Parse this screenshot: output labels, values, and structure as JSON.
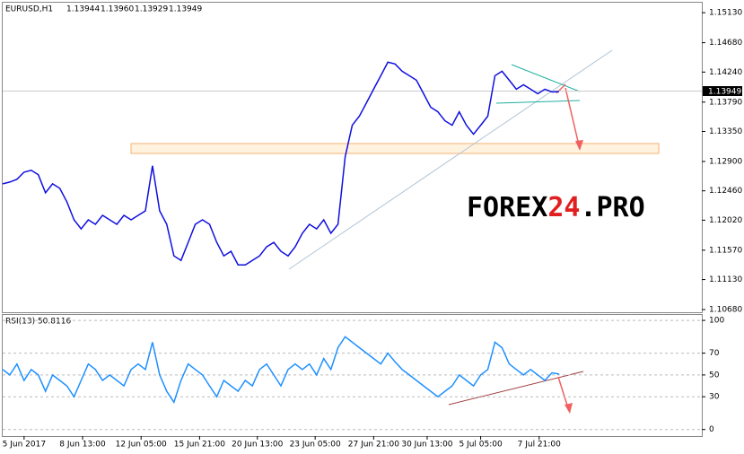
{
  "chart_data": [
    {
      "type": "line",
      "title": "EURUSD,H1",
      "quote": [
        "1.13944",
        "1.13960",
        "1.13929",
        "1.13949"
      ],
      "last_price_label": "1.13949",
      "watermark": [
        "FOREX",
        "24",
        ".PRO"
      ],
      "x": [
        0,
        1,
        2,
        3,
        4,
        5,
        6,
        7,
        8,
        9,
        10,
        11,
        12,
        13,
        14,
        15,
        16,
        17,
        18,
        19,
        20,
        21,
        22,
        23,
        24,
        25,
        26,
        27,
        28,
        29,
        30,
        31,
        32,
        33,
        34,
        35,
        36,
        37,
        38,
        39,
        40,
        41,
        42,
        43,
        44,
        45,
        46,
        47,
        48,
        49,
        50,
        51,
        52,
        53,
        54,
        55,
        56,
        57,
        58,
        59,
        60,
        61,
        62,
        63,
        64,
        65,
        66,
        67,
        68,
        69,
        70,
        71,
        72,
        73,
        74,
        75,
        76,
        77,
        78
      ],
      "values": [
        1.12565,
        1.12592,
        1.12633,
        1.1274,
        1.12768,
        1.127,
        1.1243,
        1.12565,
        1.12498,
        1.12295,
        1.12025,
        1.1189,
        1.12025,
        1.11958,
        1.12093,
        1.12025,
        1.11958,
        1.12093,
        1.12025,
        1.12093,
        1.1216,
        1.12835,
        1.1216,
        1.11958,
        1.11485,
        1.11418,
        1.11688,
        1.11958,
        1.12025,
        1.11958,
        1.11688,
        1.11485,
        1.11553,
        1.1135,
        1.1135,
        1.11418,
        1.11485,
        1.1162,
        1.11688,
        1.11553,
        1.11485,
        1.1162,
        1.11823,
        1.11958,
        1.1189,
        1.12025,
        1.11823,
        1.11958,
        1.1297,
        1.13443,
        1.13578,
        1.1378,
        1.13983,
        1.14185,
        1.14388,
        1.14361,
        1.14253,
        1.14185,
        1.14118,
        1.13915,
        1.13713,
        1.13645,
        1.1351,
        1.13443,
        1.13645,
        1.13443,
        1.13308,
        1.13443,
        1.13578,
        1.14185,
        1.14253,
        1.14118,
        1.13983,
        1.1405,
        1.13983,
        1.13915,
        1.13983,
        1.13942,
        1.13949
      ],
      "color": "#1010e0",
      "xlim": [
        0,
        98
      ],
      "ylim": [
        1.1064,
        1.1528
      ],
      "yticks": [
        {
          "value": 1.1513,
          "label": "1.15130"
        },
        {
          "value": 1.1468,
          "label": "1.14680"
        },
        {
          "value": 1.1424,
          "label": "1.14240"
        },
        {
          "value": 1.1379,
          "label": "1.13790"
        },
        {
          "value": 1.1335,
          "label": "1.13350"
        },
        {
          "value": 1.129,
          "label": "1.12900"
        },
        {
          "value": 1.1246,
          "label": "1.12460"
        },
        {
          "value": 1.1202,
          "label": "1.12020"
        },
        {
          "value": 1.1157,
          "label": "1.11570"
        },
        {
          "value": 1.1113,
          "label": "1.11130"
        },
        {
          "value": 1.1068,
          "label": "1.10680"
        }
      ]
    },
    {
      "type": "line",
      "title": "RSI(13) 50.8116",
      "x": [
        0,
        1,
        2,
        3,
        4,
        5,
        6,
        7,
        8,
        9,
        10,
        11,
        12,
        13,
        14,
        15,
        16,
        17,
        18,
        19,
        20,
        21,
        22,
        23,
        24,
        25,
        26,
        27,
        28,
        29,
        30,
        31,
        32,
        33,
        34,
        35,
        36,
        37,
        38,
        39,
        40,
        41,
        42,
        43,
        44,
        45,
        46,
        47,
        48,
        49,
        50,
        51,
        52,
        53,
        54,
        55,
        56,
        57,
        58,
        59,
        60,
        61,
        62,
        63,
        64,
        65,
        66,
        67,
        68,
        69,
        70,
        71,
        72,
        73,
        74,
        75,
        76,
        77,
        78
      ],
      "values": [
        55,
        50,
        60,
        45,
        55,
        50,
        35,
        50,
        45,
        40,
        30,
        45,
        60,
        55,
        45,
        50,
        45,
        40,
        55,
        60,
        55,
        80,
        50,
        35,
        25,
        45,
        60,
        55,
        50,
        40,
        30,
        45,
        40,
        35,
        45,
        40,
        55,
        60,
        50,
        40,
        55,
        60,
        55,
        60,
        50,
        65,
        55,
        75,
        85,
        80,
        75,
        70,
        65,
        60,
        70,
        62,
        55,
        50,
        45,
        40,
        35,
        30,
        35,
        40,
        50,
        45,
        40,
        50,
        55,
        80,
        75,
        60,
        55,
        50,
        55,
        50,
        45,
        52,
        50.8
      ],
      "color": "#1e90ff",
      "xlim": [
        0,
        98
      ],
      "ylim": [
        -6,
        105
      ],
      "yticks": [
        0,
        30,
        50,
        70,
        100
      ],
      "grid": true,
      "xticks": [
        {
          "value": 3,
          "label": "5 Jun 2017"
        },
        {
          "value": 11.2,
          "label": "8 Jun 13:00"
        },
        {
          "value": 19.4,
          "label": "12 Jun 05:00"
        },
        {
          "value": 27.6,
          "label": "15 Jun 21:00"
        },
        {
          "value": 35.7,
          "label": "20 Jun 13:00"
        },
        {
          "value": 43.8,
          "label": "23 Jun 05:00"
        },
        {
          "value": 52,
          "label": "27 Jun 21:00"
        },
        {
          "value": 59.5,
          "label": "30 Jun 13:00"
        },
        {
          "value": 67,
          "label": "5 Jul 05:00"
        },
        {
          "value": 75.2,
          "label": "7 Jul 21:00"
        }
      ]
    }
  ]
}
